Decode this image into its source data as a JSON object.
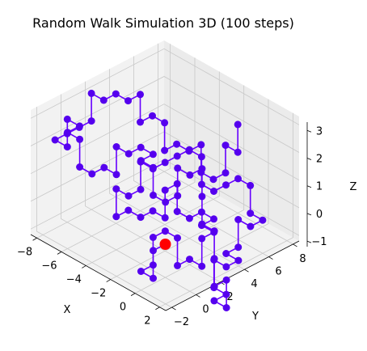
{
  "chart_data": {
    "type": "line3d",
    "title": "Random Walk Simulation 3D (100 steps)",
    "xlabel": "X",
    "ylabel": "Y",
    "zlabel": "Z",
    "xlim": [
      -8.5,
      2.5
    ],
    "ylim": [
      -2.5,
      8.5
    ],
    "zlim": [
      -1.2,
      3.3
    ],
    "xticks": [
      "−8",
      "−6",
      "−4",
      "−2",
      "0",
      "2"
    ],
    "xtick_values": [
      -8,
      -6,
      -4,
      -2,
      0,
      2
    ],
    "yticks": [
      "−2",
      "0",
      "2",
      "4",
      "6",
      "8"
    ],
    "ytick_values": [
      -2,
      0,
      2,
      4,
      6,
      8
    ],
    "zticks": [
      "−1",
      "0",
      "1",
      "2",
      "3"
    ],
    "ztick_values": [
      -1,
      0,
      1,
      2,
      3
    ],
    "grid": true,
    "series": [
      {
        "line_color": "#6600ff",
        "marker_color": "#5500ee",
        "path": [
          [
            0,
            0,
            0
          ],
          [
            0,
            -1,
            0
          ],
          [
            0,
            -1,
            -1
          ],
          [
            -1,
            -1,
            -1
          ],
          [
            -1,
            0,
            -1
          ],
          [
            -1,
            0,
            0
          ],
          [
            -1,
            1,
            0
          ],
          [
            0,
            1,
            0
          ],
          [
            0,
            1,
            -1
          ],
          [
            0,
            2,
            -1
          ],
          [
            1,
            2,
            -1
          ],
          [
            1,
            2,
            0
          ],
          [
            1,
            3,
            0
          ],
          [
            0,
            3,
            0
          ],
          [
            0,
            4,
            0
          ],
          [
            -1,
            4,
            0
          ],
          [
            -1,
            3,
            0
          ],
          [
            -2,
            3,
            0
          ],
          [
            -2,
            3,
            1
          ],
          [
            -2,
            2,
            1
          ],
          [
            -2,
            2,
            0
          ],
          [
            -3,
            2,
            0
          ],
          [
            -3,
            1,
            0
          ],
          [
            -4,
            1,
            0
          ],
          [
            -4,
            0,
            0
          ],
          [
            -4,
            0,
            1
          ],
          [
            -3,
            0,
            1
          ],
          [
            -3,
            1,
            1
          ],
          [
            -3,
            1,
            2
          ],
          [
            -2,
            1,
            2
          ],
          [
            -2,
            2,
            2
          ],
          [
            -2,
            3,
            2
          ],
          [
            -2,
            4,
            2
          ],
          [
            -1,
            4,
            2
          ],
          [
            -1,
            4,
            1
          ],
          [
            0,
            4,
            1
          ],
          [
            0,
            5,
            1
          ],
          [
            0,
            6,
            1
          ],
          [
            1,
            6,
            1
          ],
          [
            1,
            6,
            0
          ],
          [
            2,
            6,
            0
          ],
          [
            2,
            5,
            0
          ],
          [
            1,
            5,
            0
          ],
          [
            1,
            5,
            -1
          ],
          [
            1,
            4,
            -1
          ],
          [
            2,
            4,
            -1
          ],
          [
            2,
            3,
            -1
          ],
          [
            1,
            3,
            -1
          ],
          [
            1,
            3,
            -2
          ],
          [
            2,
            3,
            -2
          ],
          [
            2,
            2,
            -2
          ],
          [
            3,
            2,
            -2
          ],
          [
            3,
            2,
            -1
          ],
          [
            3,
            1,
            -1
          ],
          [
            3,
            1,
            0
          ],
          [
            3,
            1,
            1
          ],
          [
            2,
            1,
            1
          ],
          [
            2,
            1,
            2
          ],
          [
            2,
            1,
            3
          ],
          [
            2,
            0,
            3
          ],
          [
            1,
            0,
            3
          ],
          [
            1,
            0,
            2
          ],
          [
            1,
            -1,
            2
          ],
          [
            0,
            -1,
            2
          ],
          [
            0,
            -1,
            3
          ],
          [
            -1,
            -1,
            3
          ],
          [
            -1,
            0,
            3
          ],
          [
            -2,
            0,
            3
          ],
          [
            -2,
            -1,
            3
          ],
          [
            -3,
            -1,
            3
          ],
          [
            -3,
            -1,
            2
          ],
          [
            -4,
            -1,
            2
          ],
          [
            -4,
            -2,
            2
          ],
          [
            -5,
            -2,
            2
          ],
          [
            -5,
            -2,
            3
          ],
          [
            -6,
            -2,
            3
          ],
          [
            -6,
            -1,
            3
          ],
          [
            -7,
            -1,
            3
          ],
          [
            -7,
            -1,
            2
          ],
          [
            -8,
            -1,
            2
          ],
          [
            -8,
            0,
            2
          ],
          [
            -8,
            1,
            2
          ],
          [
            -8,
            2,
            2
          ],
          [
            -8,
            2,
            3
          ],
          [
            -7,
            2,
            3
          ],
          [
            -7,
            3,
            3
          ],
          [
            -6,
            3,
            3
          ],
          [
            -6,
            4,
            3
          ],
          [
            -6,
            4,
            2
          ],
          [
            -6,
            5,
            2
          ],
          [
            -5,
            5,
            2
          ],
          [
            -5,
            5,
            1
          ],
          [
            -5,
            6,
            1
          ],
          [
            -4,
            6,
            1
          ],
          [
            -4,
            7,
            1
          ],
          [
            -4,
            7,
            0
          ],
          [
            -3,
            7,
            0
          ],
          [
            -3,
            8,
            0
          ],
          [
            -3,
            8,
            1
          ],
          [
            -2,
            8,
            1
          ],
          [
            -2,
            8,
            2
          ]
        ],
        "start": [
          0,
          0,
          0
        ],
        "start_color": "#ff0000"
      }
    ],
    "view": {
      "elev": 30,
      "azim": -60
    }
  }
}
